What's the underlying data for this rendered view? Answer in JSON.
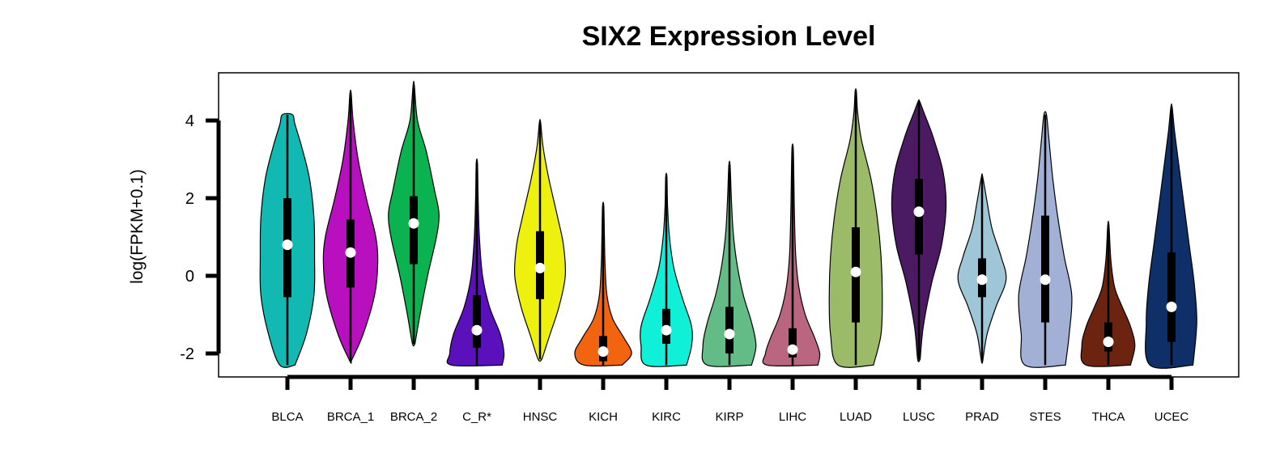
{
  "chart_data": {
    "type": "violin",
    "title": "SIX2 Expression Level",
    "xlabel": "",
    "ylabel": "log(FPKM+0.1)",
    "ylim": [
      -2.6,
      5.3
    ],
    "yticks": [
      -2,
      0,
      2,
      4
    ],
    "categories": [
      "BLCA",
      "BRCA_1",
      "BRCA_2",
      "C_R*",
      "HNSC",
      "KICH",
      "KIRC",
      "KIRP",
      "LIHC",
      "LUAD",
      "LUSC",
      "PRAD",
      "STES",
      "THCA",
      "UCEC"
    ],
    "colors": [
      "#12b8b2",
      "#b80fbf",
      "#0bb350",
      "#5a10bb",
      "#eef00d",
      "#f2640f",
      "#10efd8",
      "#63bb85",
      "#bb6680",
      "#9bbb68",
      "#4b1a62",
      "#9fc6d6",
      "#a1b0d4",
      "#6c2410",
      "#0e2f68"
    ],
    "series": [
      {
        "values": [
          {
            "min": -2.3,
            "q1": -0.55,
            "median": 0.8,
            "q3": 2.0,
            "max": 4.15
          },
          {
            "min": -2.2,
            "q1": -0.3,
            "median": 0.6,
            "q3": 1.45,
            "max": 4.7
          },
          {
            "min": -1.75,
            "q1": 0.3,
            "median": 1.35,
            "q3": 2.05,
            "max": 4.9
          },
          {
            "min": -2.3,
            "q1": -1.85,
            "median": -1.4,
            "q3": -0.5,
            "max": 2.9
          },
          {
            "min": -2.15,
            "q1": -0.6,
            "median": 0.2,
            "q3": 1.15,
            "max": 3.95
          },
          {
            "min": -2.3,
            "q1": -2.2,
            "median": -1.95,
            "q3": -1.55,
            "max": 1.8
          },
          {
            "min": -2.3,
            "q1": -1.75,
            "median": -1.4,
            "q3": -0.85,
            "max": 2.55
          },
          {
            "min": -2.3,
            "q1": -2.0,
            "median": -1.5,
            "q3": -0.8,
            "max": 2.85
          },
          {
            "min": -2.3,
            "q1": -2.1,
            "median": -1.9,
            "q3": -1.35,
            "max": 3.3
          },
          {
            "min": -2.3,
            "q1": -1.2,
            "median": 0.1,
            "q3": 1.25,
            "max": 4.75
          },
          {
            "min": -2.15,
            "q1": 0.55,
            "median": 1.65,
            "q3": 2.5,
            "max": 4.5
          },
          {
            "min": -2.2,
            "q1": -0.55,
            "median": -0.1,
            "q3": 0.45,
            "max": 2.55
          },
          {
            "min": -2.3,
            "q1": -1.2,
            "median": -0.1,
            "q3": 1.55,
            "max": 4.15
          },
          {
            "min": -2.3,
            "q1": -1.95,
            "median": -1.7,
            "q3": -1.2,
            "max": 1.3
          },
          {
            "min": -2.3,
            "q1": -1.7,
            "median": -0.8,
            "q3": 0.6,
            "max": 4.35
          }
        ]
      }
    ],
    "densities": [
      [
        [
          -2.3,
          0.12
        ],
        [
          -1.5,
          0.3
        ],
        [
          -0.5,
          0.42
        ],
        [
          0.5,
          0.43
        ],
        [
          1.5,
          0.42
        ],
        [
          2.5,
          0.35
        ],
        [
          3.3,
          0.23
        ],
        [
          3.9,
          0.12
        ],
        [
          4.15,
          0.08
        ]
      ],
      [
        [
          -2.2,
          0.01
        ],
        [
          -1.5,
          0.2
        ],
        [
          -0.5,
          0.38
        ],
        [
          0.3,
          0.43
        ],
        [
          1.0,
          0.4
        ],
        [
          2.0,
          0.25
        ],
        [
          3.0,
          0.12
        ],
        [
          4.0,
          0.04
        ],
        [
          4.7,
          0.01
        ]
      ],
      [
        [
          -1.75,
          0.02
        ],
        [
          -1.0,
          0.1
        ],
        [
          0.0,
          0.22
        ],
        [
          1.0,
          0.36
        ],
        [
          1.6,
          0.4
        ],
        [
          2.2,
          0.33
        ],
        [
          3.2,
          0.2
        ],
        [
          4.0,
          0.06
        ],
        [
          4.9,
          0.01
        ]
      ],
      [
        [
          -2.3,
          0.4
        ],
        [
          -2.0,
          0.43
        ],
        [
          -1.5,
          0.37
        ],
        [
          -0.8,
          0.2
        ],
        [
          0.0,
          0.09
        ],
        [
          1.0,
          0.04
        ],
        [
          2.0,
          0.02
        ],
        [
          2.9,
          0.01
        ]
      ],
      [
        [
          -2.15,
          0.03
        ],
        [
          -1.5,
          0.16
        ],
        [
          -0.8,
          0.3
        ],
        [
          0.0,
          0.4
        ],
        [
          0.8,
          0.37
        ],
        [
          1.5,
          0.28
        ],
        [
          2.5,
          0.14
        ],
        [
          3.3,
          0.05
        ],
        [
          3.95,
          0.01
        ]
      ],
      [
        [
          -2.3,
          0.3
        ],
        [
          -2.0,
          0.45
        ],
        [
          -1.6,
          0.33
        ],
        [
          -1.1,
          0.15
        ],
        [
          -0.5,
          0.06
        ],
        [
          0.3,
          0.03
        ],
        [
          1.0,
          0.02
        ],
        [
          1.8,
          0.01
        ]
      ],
      [
        [
          -2.3,
          0.32
        ],
        [
          -1.8,
          0.4
        ],
        [
          -1.3,
          0.4
        ],
        [
          -0.6,
          0.26
        ],
        [
          0.2,
          0.12
        ],
        [
          1.0,
          0.05
        ],
        [
          1.8,
          0.02
        ],
        [
          2.55,
          0.01
        ]
      ],
      [
        [
          -2.3,
          0.35
        ],
        [
          -1.8,
          0.42
        ],
        [
          -1.2,
          0.35
        ],
        [
          -0.5,
          0.22
        ],
        [
          0.3,
          0.12
        ],
        [
          1.1,
          0.06
        ],
        [
          2.0,
          0.03
        ],
        [
          2.85,
          0.01
        ]
      ],
      [
        [
          -2.3,
          0.4
        ],
        [
          -2.0,
          0.43
        ],
        [
          -1.6,
          0.35
        ],
        [
          -1.0,
          0.2
        ],
        [
          -0.3,
          0.1
        ],
        [
          0.5,
          0.05
        ],
        [
          1.5,
          0.03
        ],
        [
          2.5,
          0.02
        ],
        [
          3.3,
          0.01
        ]
      ],
      [
        [
          -2.3,
          0.28
        ],
        [
          -1.5,
          0.4
        ],
        [
          -0.5,
          0.42
        ],
        [
          0.5,
          0.4
        ],
        [
          1.5,
          0.34
        ],
        [
          2.5,
          0.24
        ],
        [
          3.5,
          0.09
        ],
        [
          4.2,
          0.03
        ],
        [
          4.75,
          0.01
        ]
      ],
      [
        [
          -2.15,
          0.02
        ],
        [
          -1.3,
          0.07
        ],
        [
          -0.2,
          0.2
        ],
        [
          0.8,
          0.36
        ],
        [
          1.8,
          0.43
        ],
        [
          2.7,
          0.38
        ],
        [
          3.6,
          0.22
        ],
        [
          4.2,
          0.08
        ],
        [
          4.5,
          0.01
        ]
      ],
      [
        [
          -2.2,
          0.01
        ],
        [
          -1.5,
          0.08
        ],
        [
          -0.8,
          0.22
        ],
        [
          -0.1,
          0.38
        ],
        [
          0.5,
          0.3
        ],
        [
          1.2,
          0.16
        ],
        [
          1.9,
          0.08
        ],
        [
          2.55,
          0.01
        ]
      ],
      [
        [
          -2.3,
          0.32
        ],
        [
          -1.5,
          0.38
        ],
        [
          -0.5,
          0.42
        ],
        [
          0.5,
          0.3
        ],
        [
          1.5,
          0.2
        ],
        [
          2.5,
          0.12
        ],
        [
          3.5,
          0.06
        ],
        [
          4.15,
          0.02
        ]
      ],
      [
        [
          -2.3,
          0.35
        ],
        [
          -1.8,
          0.42
        ],
        [
          -1.3,
          0.35
        ],
        [
          -0.8,
          0.22
        ],
        [
          -0.3,
          0.1
        ],
        [
          0.4,
          0.04
        ],
        [
          1.3,
          0.01
        ]
      ],
      [
        [
          -2.3,
          0.34
        ],
        [
          -1.2,
          0.4
        ],
        [
          -0.2,
          0.36
        ],
        [
          0.8,
          0.28
        ],
        [
          1.8,
          0.2
        ],
        [
          2.8,
          0.12
        ],
        [
          3.7,
          0.05
        ],
        [
          4.35,
          0.01
        ]
      ]
    ],
    "grid": false,
    "legend": "none"
  }
}
